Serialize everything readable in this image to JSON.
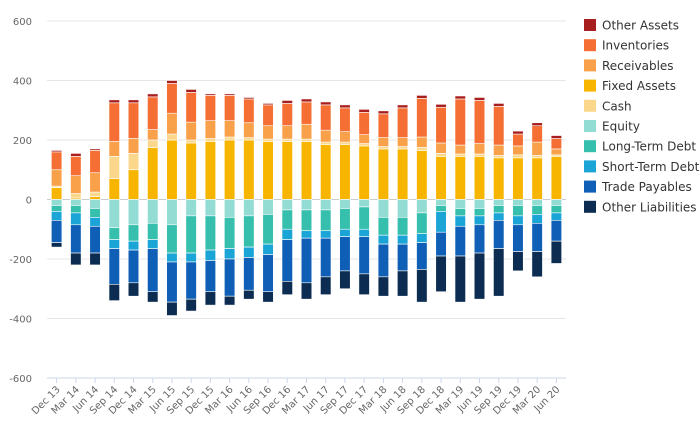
{
  "chart_data": {
    "type": "bar",
    "stacked": true,
    "title": "",
    "xlabel": "",
    "ylabel": "",
    "ylim": [
      -600,
      600
    ],
    "yticks": [
      -600,
      -400,
      -200,
      0,
      200,
      400,
      600
    ],
    "grid": "horizontal",
    "legend_position": "right",
    "categories": [
      "Dec 13",
      "Mar 14",
      "Jun 14",
      "Sep 14",
      "Dec 14",
      "Mar 15",
      "Jun 15",
      "Sep 15",
      "Dec 15",
      "Mar 16",
      "Jun 16",
      "Sep 16",
      "Dec 16",
      "Mar 17",
      "Jun 17",
      "Sep 17",
      "Dec 17",
      "Mar 18",
      "Jun 18",
      "Sep 18",
      "Dec 18",
      "Mar 19",
      "Jun 19",
      "Sep 19",
      "Dec 19",
      "Mar 20",
      "Jun 20"
    ],
    "x_tick_labels": [
      "Dec 13",
      "Mar 14",
      "Jun 14",
      "Sep 14",
      "Dec 14",
      "Mar 15",
      "Jun 15",
      "Sep 15",
      "Dec 15",
      "Mar 16",
      "Jun 16",
      "Sep 16",
      "Dec 16",
      "Mar 17",
      "Jun 17",
      "Sep 17",
      "Dec 17",
      "Mar 18",
      "Jun 18",
      "Sep 18",
      "Dec 18",
      "Mar 19",
      "Jun 19",
      "Sep 19",
      "Dec 19",
      "Mar 20",
      "Jun 20"
    ],
    "series": [
      {
        "name": "Fixed Assets",
        "color": "#F7B500",
        "values": [
          40,
          5,
          10,
          70,
          100,
          175,
          200,
          190,
          195,
          200,
          200,
          195,
          195,
          195,
          185,
          185,
          180,
          170,
          170,
          165,
          145,
          145,
          145,
          140,
          140,
          140,
          145
        ]
      },
      {
        "name": "Cash",
        "color": "#FBD78C",
        "values": [
          5,
          15,
          15,
          75,
          55,
          25,
          20,
          10,
          10,
          10,
          8,
          8,
          8,
          8,
          8,
          8,
          8,
          8,
          8,
          10,
          10,
          8,
          8,
          8,
          10,
          8,
          5
        ]
      },
      {
        "name": "Receivables",
        "color": "#F9A14A",
        "values": [
          55,
          60,
          65,
          50,
          50,
          35,
          70,
          60,
          60,
          55,
          50,
          45,
          45,
          50,
          40,
          35,
          30,
          30,
          30,
          35,
          35,
          30,
          35,
          35,
          30,
          45,
          20
        ]
      },
      {
        "name": "Inventories",
        "color": "#F56E33",
        "values": [
          60,
          65,
          75,
          130,
          120,
          110,
          100,
          100,
          85,
          85,
          80,
          70,
          75,
          75,
          85,
          80,
          75,
          80,
          100,
          130,
          120,
          155,
          145,
          130,
          40,
          55,
          35
        ]
      },
      {
        "name": "Other Assets",
        "color": "#A81E1E",
        "values": [
          5,
          10,
          5,
          10,
          10,
          10,
          10,
          10,
          5,
          5,
          5,
          5,
          10,
          10,
          10,
          10,
          10,
          10,
          10,
          10,
          10,
          10,
          10,
          10,
          10,
          10,
          10
        ]
      },
      {
        "name": "Equity",
        "color": "#92DCD4",
        "values": [
          -20,
          -20,
          -30,
          -95,
          -85,
          -80,
          -85,
          -55,
          -55,
          -60,
          -55,
          -50,
          -35,
          -35,
          -35,
          -30,
          -25,
          -60,
          -60,
          -45,
          -20,
          -30,
          -30,
          -20,
          -20,
          -20,
          -20
        ]
      },
      {
        "name": "Long-Term Debt",
        "color": "#36BFAD",
        "values": [
          -20,
          -25,
          -30,
          -40,
          -55,
          -55,
          -95,
          -125,
          -115,
          -105,
          -105,
          -100,
          -65,
          -70,
          -70,
          -70,
          -75,
          -60,
          -60,
          -70,
          -20,
          -25,
          -25,
          -25,
          -35,
          -30,
          -25
        ]
      },
      {
        "name": "Short-Term Debt",
        "color": "#1AA5D6",
        "values": [
          -30,
          -40,
          -30,
          -30,
          -30,
          -30,
          -30,
          -30,
          -35,
          -35,
          -35,
          -35,
          -35,
          -25,
          -25,
          -25,
          -25,
          -30,
          -30,
          -30,
          -70,
          -35,
          -30,
          -25,
          -30,
          -30,
          -25
        ]
      },
      {
        "name": "Trade Payables",
        "color": "#0E5FB5",
        "values": [
          -75,
          -95,
          -90,
          -120,
          -110,
          -145,
          -135,
          -125,
          -105,
          -125,
          -110,
          -125,
          -140,
          -150,
          -130,
          -115,
          -125,
          -110,
          -90,
          -90,
          -80,
          -100,
          -95,
          -95,
          -90,
          -95,
          -70
        ]
      },
      {
        "name": "Other Liabilities",
        "color": "#0C2C52",
        "values": [
          -15,
          -40,
          -40,
          -55,
          -45,
          -35,
          -45,
          -40,
          -45,
          -30,
          -30,
          -35,
          -45,
          -55,
          -60,
          -60,
          -70,
          -65,
          -85,
          -110,
          -120,
          -155,
          -155,
          -160,
          -65,
          -85,
          -75
        ]
      }
    ],
    "legend_order": [
      "Other Assets",
      "Inventories",
      "Receivables",
      "Fixed Assets",
      "Cash",
      "Equity",
      "Long-Term Debt",
      "Short-Term Debt",
      "Trade Payables",
      "Other Liabilities"
    ]
  }
}
